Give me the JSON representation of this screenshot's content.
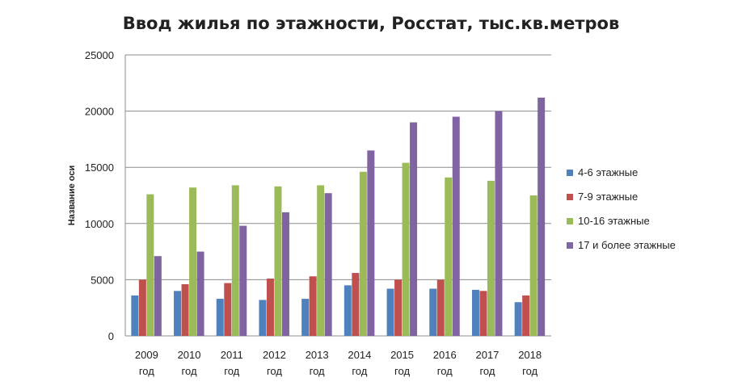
{
  "chart_data": {
    "type": "bar",
    "title": "Ввод жилья по этажности, Росстат, тыс.кв.метров",
    "ylabel": "Название оси",
    "xlabel": "",
    "ylim": [
      0,
      25000
    ],
    "yticks": [
      0,
      5000,
      10000,
      15000,
      20000,
      25000
    ],
    "grid": true,
    "legend_position": "right",
    "categories": [
      [
        "2009",
        "год"
      ],
      [
        "2010",
        "год"
      ],
      [
        "2011",
        "год"
      ],
      [
        "2012",
        "год"
      ],
      [
        "2013",
        "год"
      ],
      [
        "2014",
        "год"
      ],
      [
        "2015",
        "год"
      ],
      [
        "2016",
        "год"
      ],
      [
        "2017",
        "год"
      ],
      [
        "2018",
        "год"
      ]
    ],
    "series": [
      {
        "name": "4-6 этажные",
        "color": "#4f81bd",
        "values": [
          3600,
          4000,
          3300,
          3200,
          3300,
          4500,
          4200,
          4200,
          4100,
          3000
        ]
      },
      {
        "name": "7-9 этажные",
        "color": "#c0504d",
        "values": [
          5000,
          4600,
          4700,
          5100,
          5300,
          5600,
          5000,
          5000,
          4000,
          3600
        ]
      },
      {
        "name": "10-16 этажные",
        "color": "#9bbb59",
        "values": [
          12600,
          13200,
          13400,
          13300,
          13400,
          14600,
          15400,
          14100,
          13800,
          12500
        ]
      },
      {
        "name": "17 и более этажные",
        "color": "#8064a2",
        "values": [
          7100,
          7500,
          9800,
          11000,
          12700,
          16500,
          19000,
          19500,
          20000,
          21200
        ]
      }
    ]
  }
}
